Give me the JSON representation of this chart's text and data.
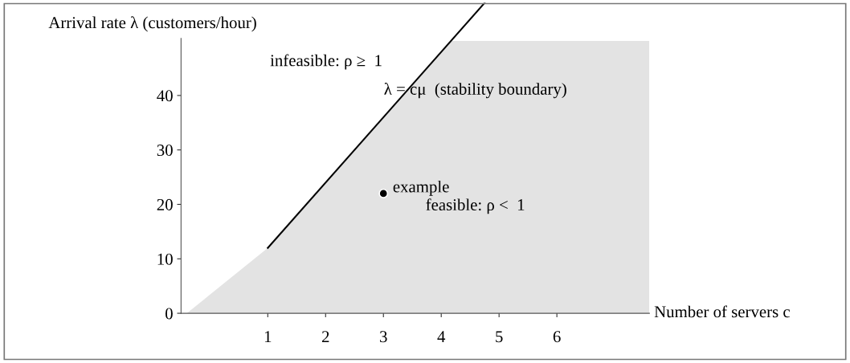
{
  "chart_data": {
    "type": "line",
    "xlabel": "Number of servers c",
    "ylabel": "Arrival rate λ (customers/hour)",
    "xlim": [
      -0.5,
      7.6
    ],
    "xticks": [
      1,
      2,
      3,
      4,
      5,
      6
    ],
    "ylim": [
      0,
      57
    ],
    "yticks": [
      0,
      10,
      20,
      30,
      40
    ],
    "grid": false,
    "series": [
      {
        "type": "area",
        "color": "#e3e3e3",
        "x": [
          -0.4,
          1,
          4.17,
          7.6
        ],
        "values": [
          0,
          12,
          50,
          50
        ]
      },
      {
        "color": "#000000",
        "x": [
          1,
          4.75
        ],
        "values": [
          12,
          57
        ]
      },
      {
        "type": "scatter",
        "color": "#000000",
        "x": [
          3
        ],
        "values": [
          22
        ]
      }
    ],
    "annotations": [
      "infeasible: ρ ≥  1",
      "λ = cμ  (stability boundary)",
      "example",
      "feasible: ρ <  1"
    ]
  }
}
